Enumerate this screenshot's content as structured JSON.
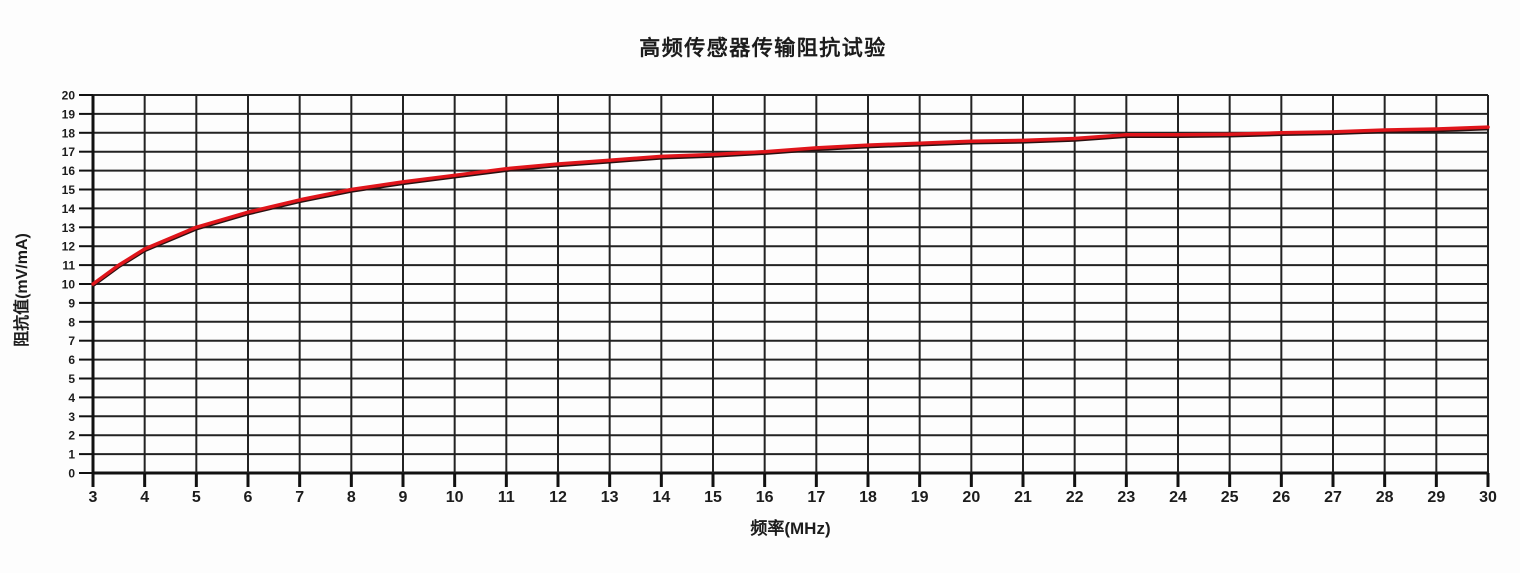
{
  "chart_data": {
    "type": "line",
    "title": "高频传感器传输阻抗试验",
    "xlabel": "频率(MHz)",
    "ylabel": "阻抗值(mV/mA)",
    "xlim": [
      3,
      30
    ],
    "ylim": [
      0,
      20
    ],
    "x_ticks": [
      3,
      4,
      5,
      6,
      7,
      8,
      9,
      10,
      11,
      12,
      13,
      14,
      15,
      16,
      17,
      18,
      19,
      20,
      21,
      22,
      23,
      24,
      25,
      26,
      27,
      28,
      29,
      30
    ],
    "y_ticks": [
      0,
      1,
      2,
      3,
      4,
      5,
      6,
      7,
      8,
      9,
      10,
      11,
      12,
      13,
      14,
      15,
      16,
      17,
      18,
      19,
      20
    ],
    "grid": true,
    "legend_position": "none",
    "x": [
      3,
      3.5,
      4,
      5,
      6,
      7,
      8,
      9,
      10,
      11,
      12,
      13,
      14,
      15,
      16,
      17,
      18,
      19,
      20,
      21,
      22,
      23,
      24,
      25,
      26,
      27,
      28,
      29,
      30
    ],
    "series": [
      {
        "values": [
          10.0,
          11.0,
          11.85,
          13.0,
          13.8,
          14.45,
          15.0,
          15.4,
          15.75,
          16.1,
          16.35,
          16.55,
          16.75,
          16.85,
          17.0,
          17.2,
          17.35,
          17.45,
          17.55,
          17.6,
          17.7,
          17.9,
          17.9,
          17.92,
          18.0,
          18.05,
          18.15,
          18.2,
          18.3
        ]
      }
    ],
    "colors": {
      "line": "#e0151b",
      "line_underlay": "#2a1111",
      "grid": "#232323",
      "axis": "#111111",
      "text": "#1c1c1c",
      "background": "#fdfdfd"
    }
  }
}
